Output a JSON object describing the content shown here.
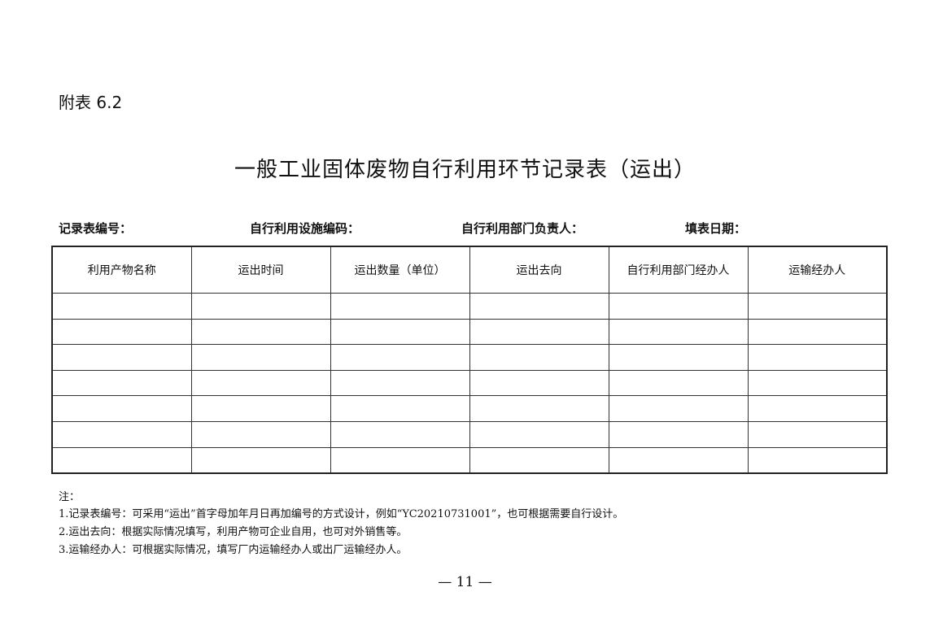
{
  "appendix_label": "附表 6.2",
  "title": "一般工业固体废物自行利用环节记录表（运出）",
  "meta_fields": [
    "记录表编号：",
    "自行利用设施编码：",
    "自行利用部门负责人：",
    "填表日期："
  ],
  "table": {
    "headers": [
      "利用产物名称",
      "运出时间",
      "运出数量（单位）",
      "运出去向",
      "自行利用部门经办人",
      "运输经办人"
    ],
    "empty_rows": 7
  },
  "notes": {
    "label": "注：",
    "items": [
      "1.记录表编号：可采用“运出”首字母加年月日再加编号的方式设计，例如“YC20210731001”，也可根据需要自行设计。",
      "2.运出去向：根据实际情况填写，利用产物可企业自用，也可对外销售等。",
      "3.运输经办人：可根据实际情况，填写厂内运输经办人或出厂运输经办人。"
    ]
  },
  "page_number": "— 11 —"
}
